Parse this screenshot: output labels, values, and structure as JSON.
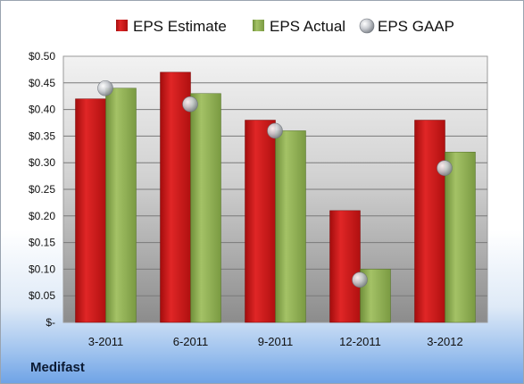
{
  "company": "Medifast",
  "colors": {
    "estimate": "#cc1a1a",
    "actual": "#8fae4f",
    "gaap": "#b9bcc2"
  },
  "chart_data": {
    "type": "bar",
    "categories": [
      "3-2011",
      "6-2011",
      "9-2011",
      "12-2011",
      "3-2012"
    ],
    "series": [
      {
        "name": "EPS Estimate",
        "kind": "bar",
        "values": [
          0.42,
          0.47,
          0.38,
          0.21,
          0.38
        ]
      },
      {
        "name": "EPS Actual",
        "kind": "bar",
        "values": [
          0.44,
          0.43,
          0.36,
          0.1,
          0.32
        ]
      },
      {
        "name": "EPS GAAP",
        "kind": "marker",
        "values": [
          0.44,
          0.41,
          0.36,
          0.08,
          0.29
        ]
      }
    ],
    "yticks": [
      "$-",
      "$0.05",
      "$0.10",
      "$0.15",
      "$0.20",
      "$0.25",
      "$0.30",
      "$0.35",
      "$0.40",
      "$0.45",
      "$0.50"
    ],
    "ylim": [
      0,
      0.5
    ],
    "grid": true,
    "legend_position": "top"
  }
}
